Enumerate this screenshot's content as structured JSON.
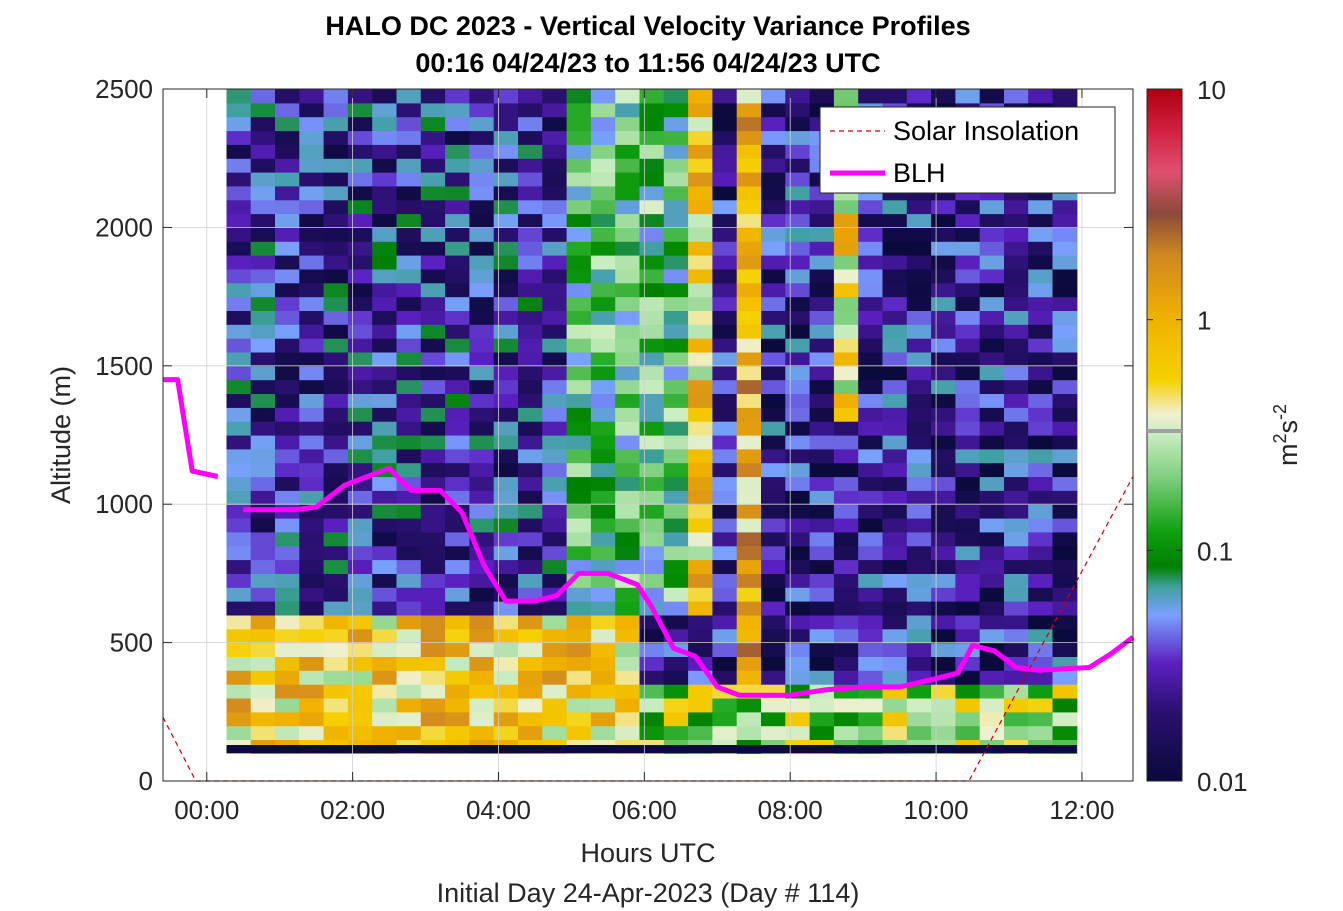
{
  "chart_data": {
    "type": "heatmap",
    "title": "HALO DC 2023 - Vertical Velocity Variance Profiles",
    "subtitle": "00:16 04/24/23 to 11:56 04/24/23  UTC",
    "xlabel": "Hours UTC",
    "xlabel2": "Initial Day 24-Apr-2023 (Day # 114)",
    "ylabel": "Altitude (m)",
    "colorbar_label": "m²s⁻²",
    "colorbar_label_base": "m",
    "colorbar_label_sup1": "2",
    "colorbar_label_mid": "s",
    "colorbar_label_sup2": "-2",
    "xlim": [
      -0.6,
      12.7
    ],
    "ylim": [
      0,
      2500
    ],
    "x_ticks": [
      0,
      2,
      4,
      6,
      8,
      10,
      12
    ],
    "x_tick_labels": [
      "00:00",
      "02:00",
      "04:00",
      "06:00",
      "08:00",
      "10:00",
      "12:00"
    ],
    "y_ticks": [
      0,
      500,
      1000,
      1500,
      2000,
      2500
    ],
    "y_tick_labels": [
      "0",
      "500",
      "1000",
      "1500",
      "2000",
      "2500"
    ],
    "colorbar_scale": "log",
    "colorbar_range": [
      0.01,
      10
    ],
    "colorbar_ticks": [
      0.01,
      0.1,
      1,
      10
    ],
    "colorbar_tick_labels": [
      "0.01",
      "0.1",
      "1",
      "10"
    ],
    "grid": true,
    "legend_position": "top-right",
    "legend": [
      {
        "name": "Solar Insolation",
        "style": "dashed",
        "color": "#d00000"
      },
      {
        "name": "BLH",
        "style": "solid",
        "color": "#ff00ff"
      }
    ],
    "heatmap": {
      "x_start": 0.27,
      "x_end": 11.93,
      "y_start": 100,
      "y_end": 2500,
      "row_height": 50,
      "columns": 35,
      "zones": [
        {
          "x_from": 0.27,
          "x_to": 6.0,
          "y_from": 100,
          "y_to": 600,
          "log_value": -0.2
        },
        {
          "x_from": 6.0,
          "x_to": 12.0,
          "y_from": 100,
          "y_to": 350,
          "log_value": -0.6
        },
        {
          "x_from": 7.0,
          "x_to": 12.0,
          "y_from": 350,
          "y_to": 2500,
          "log_value": -1.6
        },
        {
          "x_from": 5.0,
          "x_to": 7.0,
          "y_from": 600,
          "y_to": 2500,
          "log_value": -0.9
        },
        {
          "x_from": 0.27,
          "x_to": 5.0,
          "y_from": 600,
          "y_to": 2500,
          "log_value": -1.5
        }
      ],
      "bands": [
        {
          "x_from": 6.55,
          "x_to": 6.95,
          "y_from": 600,
          "y_to": 2500,
          "log_value": -0.2
        },
        {
          "x_from": 7.3,
          "x_to": 7.65,
          "y_from": 350,
          "y_to": 2500,
          "log_value": -0.05
        },
        {
          "x_from": 8.65,
          "x_to": 8.95,
          "y_from": 1300,
          "y_to": 2500,
          "log_value": -0.3
        }
      ],
      "floor": {
        "y_from": 100,
        "y_to": 130,
        "log_value": -2.0
      }
    },
    "series": [
      {
        "name": "BLH",
        "color": "#ff00ff",
        "segments": [
          [
            [
              -0.6,
              1450
            ],
            [
              -0.4,
              1450
            ],
            [
              -0.2,
              1120
            ],
            [
              0.15,
              1100
            ]
          ],
          [
            [
              0.5,
              980
            ],
            [
              1.2,
              980
            ],
            [
              1.5,
              990
            ],
            [
              1.9,
              1070
            ],
            [
              2.3,
              1110
            ],
            [
              2.5,
              1130
            ],
            [
              2.8,
              1050
            ],
            [
              3.2,
              1050
            ],
            [
              3.5,
              970
            ],
            [
              3.8,
              780
            ],
            [
              4.1,
              650
            ],
            [
              4.5,
              650
            ],
            [
              4.8,
              670
            ],
            [
              5.1,
              750
            ],
            [
              5.5,
              750
            ],
            [
              5.9,
              710
            ],
            [
              6.1,
              630
            ],
            [
              6.4,
              480
            ],
            [
              6.7,
              450
            ],
            [
              7.0,
              340
            ],
            [
              7.3,
              310
            ],
            [
              8.0,
              310
            ],
            [
              8.5,
              330
            ],
            [
              9.0,
              340
            ],
            [
              9.5,
              340
            ],
            [
              10.0,
              370
            ],
            [
              10.3,
              390
            ],
            [
              10.5,
              490
            ],
            [
              10.8,
              470
            ],
            [
              11.1,
              410
            ],
            [
              11.4,
              400
            ],
            [
              12.1,
              410
            ],
            [
              12.4,
              460
            ],
            [
              12.7,
              520
            ]
          ]
        ]
      },
      {
        "name": "Solar Insolation",
        "color": "#d00000",
        "points": [
          [
            -0.6,
            230
          ],
          [
            -0.15,
            0
          ],
          [
            10.45,
            0
          ],
          [
            12.7,
            1100
          ]
        ]
      }
    ]
  }
}
